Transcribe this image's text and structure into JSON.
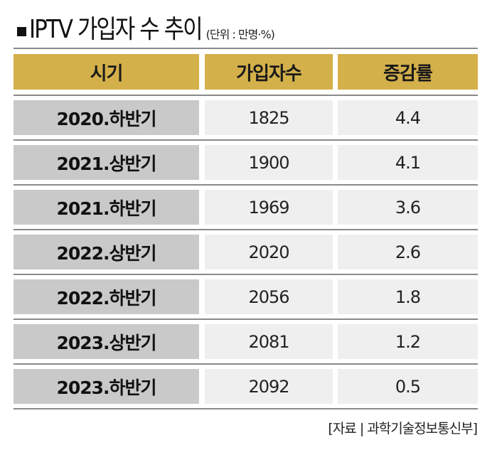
{
  "title": {
    "bullet": "■",
    "main": "IPTV 가입자 수 추이",
    "unit": "(단위 : 만명·%)"
  },
  "table": {
    "headers": [
      "시기",
      "가입자수",
      "증감률"
    ],
    "rows": [
      {
        "period": "2020.하반기",
        "subscribers": "1825",
        "change": "4.4"
      },
      {
        "period": "2021.상반기",
        "subscribers": "1900",
        "change": "4.1"
      },
      {
        "period": "2021.하반기",
        "subscribers": "1969",
        "change": "3.6"
      },
      {
        "period": "2022.상반기",
        "subscribers": "2020",
        "change": "2.6"
      },
      {
        "period": "2022.하반기",
        "subscribers": "2056",
        "change": "1.8"
      },
      {
        "period": "2023.상반기",
        "subscribers": "2081",
        "change": "1.2"
      },
      {
        "period": "2023.하반기",
        "subscribers": "2092",
        "change": "0.5"
      }
    ]
  },
  "source": "[자료 | 과학기술정보통신부]",
  "colors": {
    "header_bg": "#D4B04A",
    "period_bg": "#C9C9C9",
    "value_bg": "#EEEFEE",
    "rule": "#8A8A8A"
  },
  "chart_data": {
    "type": "table",
    "title": "IPTV 가입자 수 추이",
    "subtitle": "(단위 : 만명·%)",
    "columns": [
      "시기",
      "가입자수",
      "증감률"
    ],
    "categories": [
      "2020.하반기",
      "2021.상반기",
      "2021.하반기",
      "2022.상반기",
      "2022.하반기",
      "2023.상반기",
      "2023.하반기"
    ],
    "series": [
      {
        "name": "가입자수",
        "unit": "만명",
        "values": [
          1825,
          1900,
          1969,
          2020,
          2056,
          2081,
          2092
        ]
      },
      {
        "name": "증감률",
        "unit": "%",
        "values": [
          4.4,
          4.1,
          3.6,
          2.6,
          1.8,
          1.2,
          0.5
        ]
      }
    ],
    "source": "[자료 | 과학기술정보통신부]"
  }
}
